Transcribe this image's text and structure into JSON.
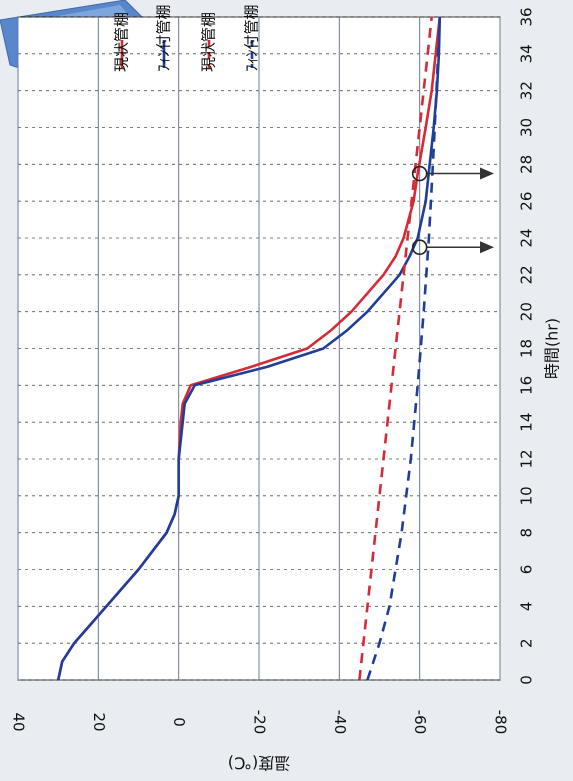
{
  "chart_data": {
    "type": "line",
    "xlabel": "時間(hr)",
    "ylabel": "温度(℃)",
    "xlim": [
      0,
      36
    ],
    "ylim": [
      -80,
      40
    ],
    "x_ticks": [
      "0",
      "2",
      "4",
      "6",
      "8",
      "10",
      "12",
      "14",
      "16",
      "18",
      "20",
      "22",
      "24",
      "26",
      "28",
      "30",
      "32",
      "34",
      "36"
    ],
    "y_ticks": [
      "40",
      "20",
      "0",
      "-20",
      "-40",
      "-60",
      "-80"
    ],
    "series": [
      {
        "name": "現状管棚　鮪中心温度",
        "color": "#d62a36",
        "dash": "solid",
        "x": [
          0,
          1,
          2,
          4,
          6,
          8,
          9,
          10,
          12,
          14,
          15,
          16,
          17,
          18,
          19,
          20,
          21,
          22,
          23,
          24,
          26,
          27.5,
          30,
          32,
          34,
          36
        ],
        "y": [
          30,
          29,
          26,
          18,
          10,
          3,
          1,
          0,
          0,
          -0.5,
          -1,
          -3,
          -18,
          -32,
          -38,
          -43,
          -47,
          -51,
          -54,
          -56,
          -58.5,
          -59.5,
          -61.5,
          -63,
          -64,
          -65
        ]
      },
      {
        "name": "ﾌｨﾝ付管棚　鮪中心温度",
        "color": "#1f3d99",
        "dash": "solid",
        "x": [
          0,
          1,
          2,
          4,
          6,
          8,
          9,
          10,
          12,
          14,
          15,
          16,
          17,
          18,
          19,
          20,
          21,
          22,
          23,
          24,
          26,
          28,
          30,
          32,
          34,
          36
        ],
        "y": [
          30,
          29,
          26,
          18,
          10,
          3,
          1,
          0,
          0,
          -1,
          -1.5,
          -4,
          -22,
          -36,
          -42,
          -47,
          -51,
          -55,
          -57.5,
          -59.5,
          -61.5,
          -62.5,
          -63.5,
          -64.3,
          -64.8,
          -65
        ]
      },
      {
        "name": "現状管棚　室温",
        "color": "#d62a36",
        "dash": "dashed",
        "x": [
          0,
          36
        ],
        "y": [
          -45,
          -63
        ]
      },
      {
        "name": "ﾌｨﾝ付管棚　室温",
        "color": "#1f3d99",
        "dash": "dashed",
        "x": [
          0,
          2,
          4,
          8,
          12,
          16,
          20,
          24,
          28,
          32,
          36
        ],
        "y": [
          -47,
          -50,
          -52.5,
          -55.5,
          -57.8,
          -59.5,
          -61,
          -62.3,
          -63.3,
          -64.2,
          -65
        ]
      }
    ],
    "annotations": [
      {
        "type": "circle-arrow",
        "x": 27.5,
        "y": -60
      },
      {
        "type": "circle-arrow",
        "x": 23.5,
        "y": -60
      }
    ],
    "grid": true,
    "legend_position": "top"
  }
}
